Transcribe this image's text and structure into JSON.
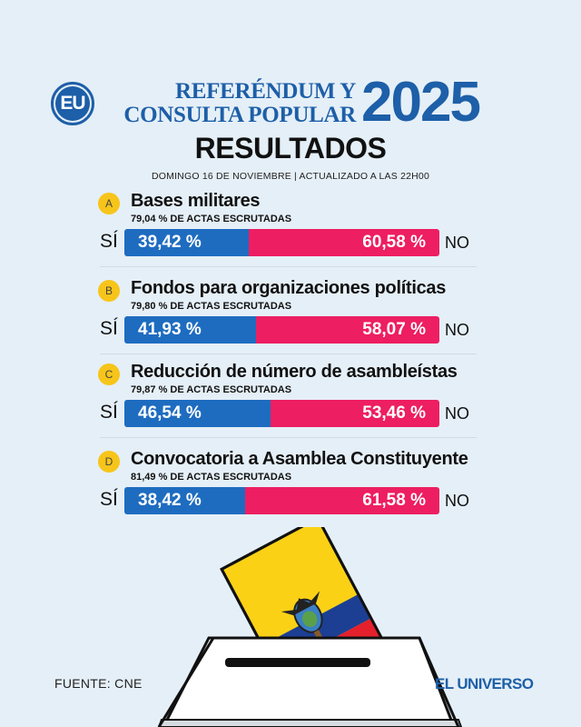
{
  "header": {
    "logo_text": "EU",
    "title_line1": "REFERÉNDUM Y",
    "title_line2": "CONSULTA POPULAR",
    "year": "2025",
    "subtitle": "RESULTADOS",
    "date_line": "DOMINGO 16 DE NOVIEMBRE | ACTUALIZADO A LAS 22H00"
  },
  "labels": {
    "si": "SÍ",
    "no": "NO"
  },
  "questions": [
    {
      "letter": "A",
      "title": "Bases militares",
      "actas": "79,04 % DE ACTAS ESCRUTADAS",
      "si_text": "39,42 %",
      "no_text": "60,58 %",
      "si_value": 39.42,
      "no_value": 60.58
    },
    {
      "letter": "B",
      "title": "Fondos para organizaciones políticas",
      "actas": "79,80 % DE ACTAS ESCRUTADAS",
      "si_text": "41,93 %",
      "no_text": "58,07 %",
      "si_value": 41.93,
      "no_value": 58.07
    },
    {
      "letter": "C",
      "title": "Reducción de número de asambleístas",
      "actas": "79,87 % DE ACTAS ESCRUTADAS",
      "si_text": "46,54 %",
      "no_text": "53,46 %",
      "si_value": 46.54,
      "no_value": 53.46
    },
    {
      "letter": "D",
      "title": "Convocatoria a Asamblea Constituyente",
      "actas": "81,49 % DE ACTAS ESCRUTADAS",
      "si_text": "38,42 %",
      "no_text": "61,58 %",
      "si_value": 38.42,
      "no_value": 61.58
    }
  ],
  "footer": {
    "source": "FUENTE: CNE",
    "brand": "EL UNIVERSO"
  },
  "colors": {
    "background": "#e5eff7",
    "brand_blue": "#1d5fa8",
    "si_blue": "#1e6cc0",
    "no_pink": "#ed1e62",
    "letter_yellow": "#f7c51a"
  },
  "icons": [
    "eu-logo",
    "ballot-box-icon",
    "ecuador-flag-ballot-icon"
  ]
}
